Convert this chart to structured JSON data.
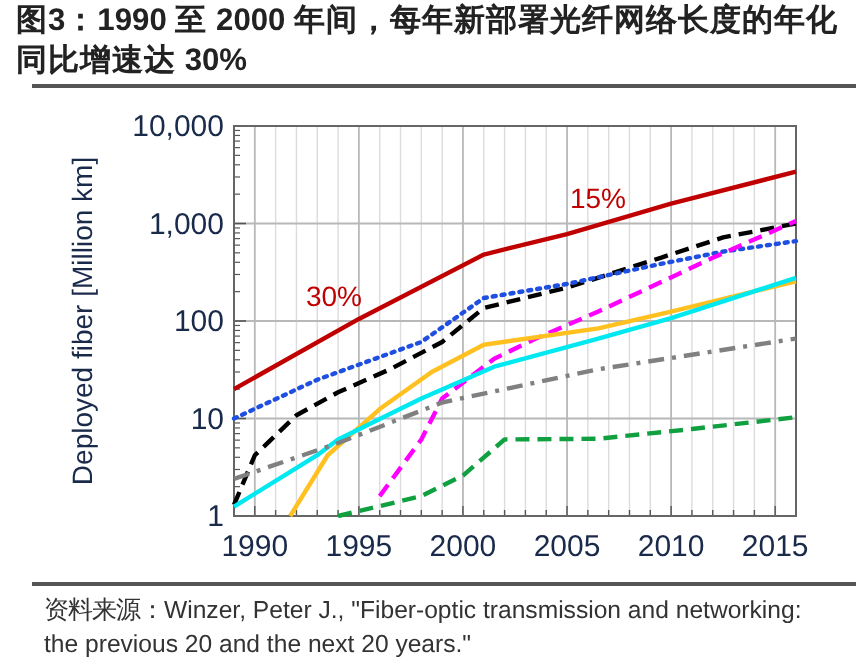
{
  "chart_data": {
    "type": "line",
    "title": "图3：1990 至 2000 年间，每年新部署光纤网络长度的年化同比增速达 30%",
    "ylabel": "Deployed fiber [Million km]",
    "log": "y",
    "xlim": [
      1989,
      2016
    ],
    "xticks": [
      {
        "value": 1990,
        "label": "1990"
      },
      {
        "value": 1991,
        "label": null
      },
      {
        "value": 1992,
        "label": null
      },
      {
        "value": 1993,
        "label": null
      },
      {
        "value": 1994,
        "label": null
      },
      {
        "value": 1995,
        "label": "1995"
      },
      {
        "value": 1996,
        "label": null
      },
      {
        "value": 1997,
        "label": null
      },
      {
        "value": 1998,
        "label": null
      },
      {
        "value": 1999,
        "label": null
      },
      {
        "value": 2000,
        "label": "2000"
      },
      {
        "value": 2001,
        "label": null
      },
      {
        "value": 2002,
        "label": null
      },
      {
        "value": 2003,
        "label": null
      },
      {
        "value": 2004,
        "label": null
      },
      {
        "value": 2005,
        "label": "2005"
      },
      {
        "value": 2006,
        "label": null
      },
      {
        "value": 2007,
        "label": null
      },
      {
        "value": 2008,
        "label": null
      },
      {
        "value": 2009,
        "label": null
      },
      {
        "value": 2010,
        "label": "2010"
      },
      {
        "value": 2011,
        "label": null
      },
      {
        "value": 2012,
        "label": null
      },
      {
        "value": 2013,
        "label": null
      },
      {
        "value": 2014,
        "label": null
      },
      {
        "value": 2015,
        "label": "2015"
      }
    ],
    "ylim": [
      1,
      10000
    ],
    "yticks": [
      1,
      10,
      100,
      {
        "value": 1000,
        "label": "1,000"
      },
      {
        "value": 10000,
        "label": "10,000"
      }
    ],
    "grid": true,
    "marker": "none",
    "series": [
      {
        "color": "#c00000",
        "line_style": "solid",
        "x": [
          1989,
          1995,
          2001,
          2005,
          2010,
          2016
        ],
        "values": [
          20,
          105,
          480,
          780,
          1600,
          3400
        ]
      },
      {
        "color": "#000000",
        "line_style": "dashed",
        "x": [
          1989,
          1990,
          1992,
          1994,
          1996.5,
          1999,
          2001,
          2005,
          2009.5,
          2012.5,
          2016
        ],
        "values": [
          1.3,
          4.2,
          10.8,
          18.6,
          32,
          61,
          136,
          220,
          445,
          720,
          1000
        ]
      },
      {
        "color": "#1f4fe0",
        "line_style": "dotted",
        "x": [
          1989,
          1993,
          1998,
          2001,
          2005,
          2009.5,
          2012.5,
          2016
        ],
        "values": [
          10,
          25,
          61,
          172,
          240,
          385,
          515,
          660
        ]
      },
      {
        "color": "#ff00ff",
        "line_style": "dashed",
        "x": [
          1996,
          1998,
          1999,
          2001.5,
          2003.5,
          2006.5,
          2012,
          2016
        ],
        "values": [
          1.6,
          6.1,
          16,
          41,
          66,
          125,
          445,
          1060
        ]
      },
      {
        "color": "#ffc020",
        "line_style": "solid",
        "x": [
          1991.7,
          1993.5,
          1996,
          1998.5,
          2001,
          2006.5,
          2010,
          2016
        ],
        "values": [
          1,
          4.2,
          12.5,
          30,
          57,
          84,
          125,
          255
        ]
      },
      {
        "color": "#00e8f0",
        "line_style": "solid",
        "x": [
          1989,
          1993,
          1994,
          1998,
          2001.5,
          2006.5,
          2010,
          2016
        ],
        "values": [
          1.25,
          4.2,
          6.1,
          16,
          34,
          66,
          107,
          277
        ]
      },
      {
        "color": "#808080",
        "line_style": "dashdot",
        "x": [
          1989,
          1994,
          1999,
          2006.5,
          2016
        ],
        "values": [
          2.4,
          5.6,
          14.6,
          32,
          66
        ]
      },
      {
        "color": "#10a040",
        "line_style": "dashed",
        "x": [
          1994,
          1998,
          2000,
          2002,
          2006.5,
          2011,
          2016
        ],
        "values": [
          1,
          1.6,
          2.6,
          6.1,
          6.2,
          7.8,
          10.3
        ]
      }
    ],
    "annotations": [
      "30%",
      "15%",
      "资料来源：Winzer, Peter J., \"Fiber-optic transmission and networking: the previous 20 and the next 20 years.\""
    ]
  }
}
